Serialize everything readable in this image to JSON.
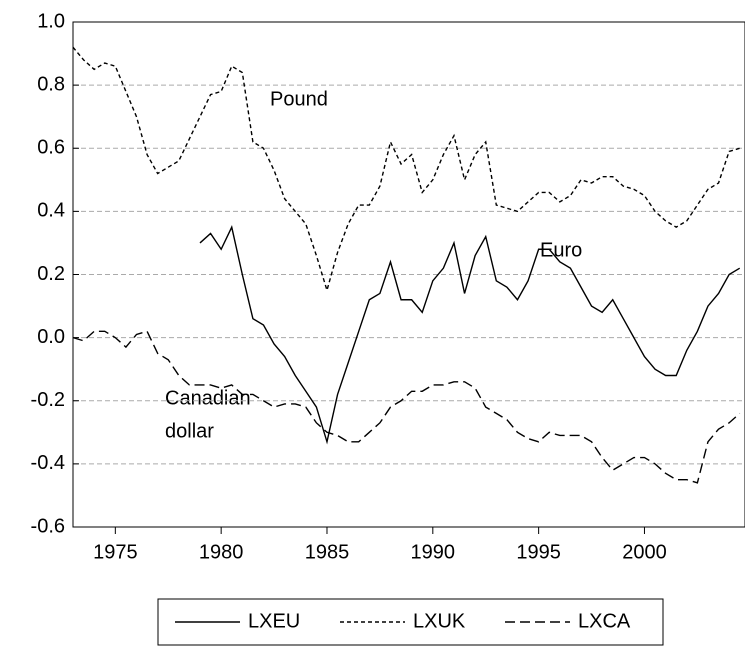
{
  "chart_data": {
    "type": "line",
    "x": [
      1973,
      1973.5,
      1974,
      1974.5,
      1975,
      1975.5,
      1976,
      1976.5,
      1977,
      1977.5,
      1978,
      1978.5,
      1979,
      1979.5,
      1980,
      1980.5,
      1981,
      1981.5,
      1982,
      1982.5,
      1983,
      1983.5,
      1984,
      1984.5,
      1985,
      1985.5,
      1986,
      1986.5,
      1987,
      1987.5,
      1988,
      1988.5,
      1989,
      1989.5,
      1990,
      1990.5,
      1991,
      1991.5,
      1992,
      1992.5,
      1993,
      1993.5,
      1994,
      1994.5,
      1995,
      1995.5,
      1996,
      1996.5,
      1997,
      1997.5,
      1998,
      1998.5,
      1999,
      1999.5,
      2000,
      2000.5,
      2001,
      2001.5,
      2002,
      2002.5,
      2003,
      2003.5,
      2004,
      2004.5
    ],
    "series": [
      {
        "name": "LXEU",
        "color": "#000000",
        "dash": "none",
        "values": [
          null,
          null,
          null,
          null,
          null,
          null,
          null,
          null,
          null,
          null,
          null,
          null,
          0.3,
          0.33,
          0.28,
          0.35,
          0.2,
          0.06,
          0.04,
          -0.02,
          -0.06,
          -0.12,
          -0.17,
          -0.22,
          -0.33,
          -0.18,
          -0.08,
          0.02,
          0.12,
          0.14,
          0.24,
          0.12,
          0.12,
          0.08,
          0.18,
          0.22,
          0.3,
          0.14,
          0.26,
          0.32,
          0.18,
          0.16,
          0.12,
          0.18,
          0.28,
          0.28,
          0.24,
          0.22,
          0.16,
          0.1,
          0.08,
          0.12,
          0.06,
          0.0,
          -0.06,
          -0.1,
          -0.12,
          -0.12,
          -0.04,
          0.02,
          0.1,
          0.14,
          0.2,
          0.22
        ]
      },
      {
        "name": "LXUK",
        "color": "#000000",
        "dash": "4,3",
        "values": [
          0.92,
          0.88,
          0.85,
          0.87,
          0.86,
          0.78,
          0.7,
          0.58,
          0.52,
          0.54,
          0.56,
          0.63,
          0.7,
          0.77,
          0.78,
          0.86,
          0.84,
          0.62,
          0.6,
          0.53,
          0.44,
          0.4,
          0.36,
          0.26,
          0.15,
          0.27,
          0.36,
          0.42,
          0.42,
          0.48,
          0.62,
          0.55,
          0.58,
          0.46,
          0.5,
          0.58,
          0.64,
          0.5,
          0.58,
          0.62,
          0.42,
          0.41,
          0.4,
          0.43,
          0.46,
          0.46,
          0.43,
          0.45,
          0.5,
          0.49,
          0.51,
          0.51,
          0.48,
          0.47,
          0.45,
          0.4,
          0.37,
          0.35,
          0.37,
          0.42,
          0.47,
          0.49,
          0.59,
          0.6
        ]
      },
      {
        "name": "LXCA",
        "color": "#000000",
        "dash": "10,5",
        "values": [
          0.0,
          -0.01,
          0.02,
          0.02,
          0.0,
          -0.03,
          0.01,
          0.02,
          -0.05,
          -0.07,
          -0.12,
          -0.15,
          -0.15,
          -0.15,
          -0.16,
          -0.15,
          -0.18,
          -0.18,
          -0.2,
          -0.22,
          -0.21,
          -0.21,
          -0.22,
          -0.27,
          -0.3,
          -0.31,
          -0.33,
          -0.33,
          -0.3,
          -0.27,
          -0.22,
          -0.2,
          -0.17,
          -0.17,
          -0.15,
          -0.15,
          -0.14,
          -0.14,
          -0.16,
          -0.22,
          -0.24,
          -0.26,
          -0.3,
          -0.32,
          -0.33,
          -0.3,
          -0.31,
          -0.31,
          -0.31,
          -0.33,
          -0.38,
          -0.42,
          -0.4,
          -0.38,
          -0.38,
          -0.4,
          -0.43,
          -0.45,
          -0.45,
          -0.46,
          -0.33,
          -0.29,
          -0.27,
          -0.24
        ]
      }
    ],
    "annotations": [
      "Pound",
      "Euro",
      "Canadian",
      "dollar"
    ],
    "xlim": [
      1973,
      2004.75
    ],
    "xticks": [
      1975,
      1980,
      1985,
      1990,
      1995,
      2000
    ],
    "ylim": [
      -0.6,
      1.0
    ],
    "yticks": [
      -0.6,
      -0.4,
      -0.2,
      {
        "value": 0,
        "label": "0.0"
      },
      0.2,
      0.4,
      0.6,
      0.8,
      {
        "value": 1,
        "label": "1.0"
      }
    ],
    "grid": true,
    "legend": "bottom"
  }
}
